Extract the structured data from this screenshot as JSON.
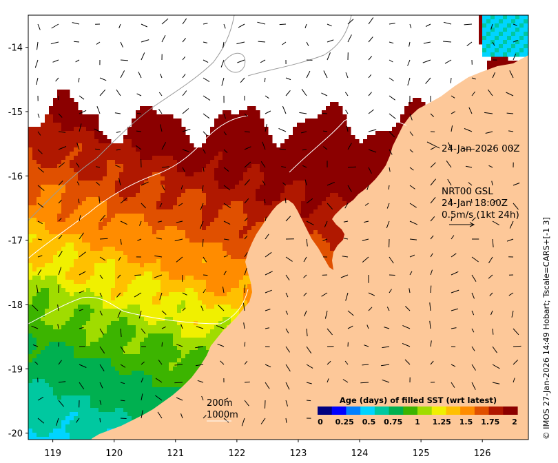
{
  "map": {
    "x_ticks": [
      "119",
      "120",
      "121",
      "122",
      "123",
      "124",
      "125",
      "126"
    ],
    "y_ticks": [
      "-14",
      "-15",
      "-16",
      "-17",
      "-18",
      "-19",
      "-20"
    ],
    "x_range": [
      118.6,
      126.75
    ],
    "y_range": [
      -20.1,
      -13.5
    ],
    "land_color": "#fdc899",
    "timestamp_label": "24-Jan-2026 00Z",
    "current_legend": {
      "line1": "NRT00 GSL",
      "line2": "24-Jan 18:00Z",
      "line3": "0.5m/s (1kt 24h)"
    },
    "isobath_labels": {
      "shallow": "200m",
      "deep": "1000m"
    },
    "colorbar": {
      "title": "Age (days) of filled SST (wrt latest)",
      "labels": [
        "0",
        "0.25",
        "0.5",
        "0.75",
        "1",
        "1.25",
        "1.5",
        "1.75",
        "2"
      ],
      "colors": [
        "#00007f",
        "#0000ff",
        "#0080ff",
        "#00d4ff",
        "#00c8a0",
        "#00b050",
        "#3cb400",
        "#a0dc00",
        "#f0f000",
        "#ffc000",
        "#ff8c00",
        "#e05000",
        "#b01800",
        "#8b0000"
      ]
    },
    "credit": "© IMOS 27-Jan-2026 14:49 Hobart; Tscale=CARS+[-1 3]"
  }
}
